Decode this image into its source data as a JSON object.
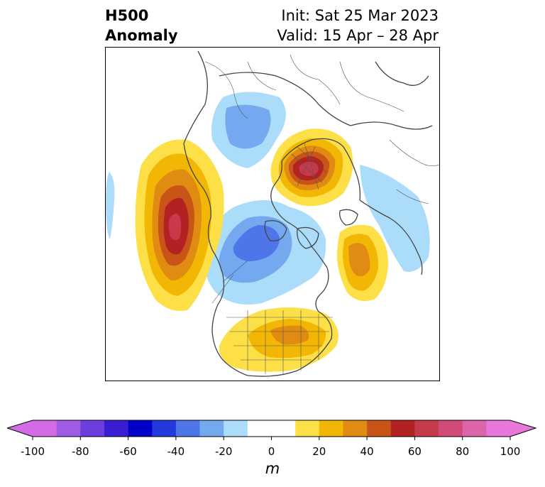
{
  "title": {
    "variable": "H500",
    "quantity": "Anomaly",
    "init": "Init: Sat 25 Mar 2023",
    "valid": "Valid: 15 Apr – 28 Apr"
  },
  "colorbar": {
    "unit": "m",
    "tick_labels": [
      "-100",
      "-80",
      "-60",
      "-40",
      "-20",
      "0",
      "20",
      "40",
      "60",
      "80",
      "100"
    ],
    "extend": "both",
    "bins": [
      {
        "range": [
          -100,
          -90
        ],
        "color": "#d36be6"
      },
      {
        "range": [
          -90,
          -80
        ],
        "color": "#a05ce2"
      },
      {
        "range": [
          -80,
          -70
        ],
        "color": "#6e3ddd"
      },
      {
        "range": [
          -70,
          -60
        ],
        "color": "#3a1cd3"
      },
      {
        "range": [
          -60,
          -50
        ],
        "color": "#0000c8"
      },
      {
        "range": [
          -50,
          -40
        ],
        "color": "#2339de"
      },
      {
        "range": [
          -40,
          -30
        ],
        "color": "#4e76e8"
      },
      {
        "range": [
          -30,
          -20
        ],
        "color": "#74a9f0"
      },
      {
        "range": [
          -20,
          -10
        ],
        "color": "#abdcfa"
      },
      {
        "range": [
          -10,
          10
        ],
        "color": "#ffffff"
      },
      {
        "range": [
          10,
          20
        ],
        "color": "#fde047"
      },
      {
        "range": [
          20,
          30
        ],
        "color": "#f2b705"
      },
      {
        "range": [
          30,
          40
        ],
        "color": "#e08c12"
      },
      {
        "range": [
          40,
          50
        ],
        "color": "#c85418"
      },
      {
        "range": [
          50,
          60
        ],
        "color": "#b22222"
      },
      {
        "range": [
          60,
          70
        ],
        "color": "#c73a4b"
      },
      {
        "range": [
          70,
          80
        ],
        "color": "#d14b79"
      },
      {
        "range": [
          80,
          90
        ],
        "color": "#dc64a8"
      },
      {
        "range": [
          90,
          100
        ],
        "color": "#e777d9"
      }
    ],
    "under_color": "#d36be6",
    "over_color": "#e777d9"
  },
  "map": {
    "projection": "north-polar-stereographic",
    "anomaly_centers": [
      {
        "region": "NE Pacific / Gulf of Alaska",
        "sign": "positive",
        "peak_m": 65
      },
      {
        "region": "Scandinavia / NW Russia",
        "sign": "positive",
        "peak_m": 60
      },
      {
        "region": "North Atlantic (SE of Greenland)",
        "sign": "positive",
        "peak_m": 35
      },
      {
        "region": "Eastern United States",
        "sign": "positive",
        "peak_m": 30
      },
      {
        "region": "Canadian Arctic Archipelago",
        "sign": "negative",
        "peak_m": -40
      },
      {
        "region": "Eastern Siberia",
        "sign": "negative",
        "peak_m": -25
      },
      {
        "region": "Central Asia",
        "sign": "negative",
        "peak_m": -20
      }
    ]
  }
}
